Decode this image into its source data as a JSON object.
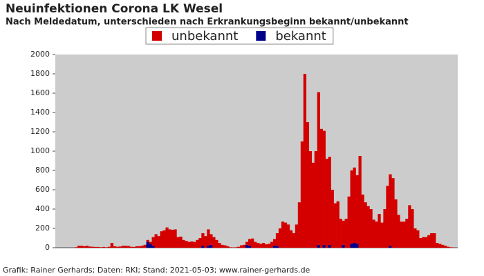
{
  "chart_data": {
    "type": "stacked-bar",
    "title": "Neuinfektionen Corona LK Wesel",
    "subtitle": "Nach Meldedatum, unterschieden nach Erkrankungsbeginn bekannt/unbekannt",
    "footer": "Grafik: Rainer Gerhards; Daten: RKI; Stand: 2021-05-03; www.rainer-gerhards.de",
    "legend_position": "top",
    "ylim": [
      0,
      2000
    ],
    "yticks": [
      0,
      200,
      400,
      600,
      800,
      1000,
      1200,
      1400,
      1600,
      1800,
      2000
    ],
    "categories": [
      null,
      null,
      null,
      null,
      null,
      null,
      null,
      null,
      null,
      null,
      null,
      null,
      null,
      null,
      null,
      null,
      null,
      null,
      null,
      null,
      null,
      null,
      null,
      null,
      null,
      null,
      null,
      null,
      null,
      null,
      null,
      null,
      null,
      null,
      null,
      null,
      null,
      null,
      null,
      null,
      null,
      null,
      null,
      null,
      null,
      null,
      null,
      null,
      null,
      null,
      null,
      null,
      null,
      null,
      null,
      null,
      null,
      null,
      null,
      null,
      null,
      null,
      null,
      null,
      null,
      null,
      null,
      null,
      null,
      null,
      null,
      null,
      null,
      null,
      null,
      null,
      null,
      null,
      null,
      null,
      null,
      null,
      null,
      null,
      null,
      null,
      null,
      null,
      null,
      null,
      null,
      null,
      null,
      null,
      null,
      null,
      null,
      null,
      null,
      null,
      null,
      null,
      null,
      null,
      null,
      null,
      null,
      null,
      null,
      null,
      null,
      null,
      null,
      null,
      null,
      null,
      null,
      null,
      null,
      null,
      null,
      null,
      null,
      null,
      null,
      null,
      null,
      null,
      null,
      null,
      null,
      null,
      null,
      null,
      null,
      null,
      null,
      null,
      null,
      null,
      null,
      null,
      null,
      null,
      null,
      null
    ],
    "series": [
      {
        "name": "bekannt",
        "color": "#00008b",
        "values": [
          0,
          0,
          0,
          0,
          0,
          0,
          0,
          0,
          0,
          0,
          0,
          0,
          0,
          0,
          0,
          0,
          0,
          0,
          0,
          0,
          0,
          0,
          0,
          0,
          0,
          0,
          0,
          0,
          0,
          0,
          0,
          0,
          0,
          60,
          40,
          20,
          0,
          0,
          0,
          0,
          0,
          0,
          0,
          0,
          0,
          0,
          0,
          0,
          0,
          0,
          0,
          0,
          0,
          20,
          0,
          20,
          30,
          0,
          0,
          0,
          0,
          0,
          0,
          0,
          0,
          0,
          0,
          0,
          0,
          30,
          20,
          0,
          0,
          0,
          0,
          0,
          0,
          0,
          0,
          20,
          20,
          0,
          0,
          0,
          0,
          0,
          0,
          0,
          0,
          0,
          0,
          0,
          0,
          0,
          0,
          30,
          0,
          30,
          0,
          30,
          0,
          0,
          0,
          0,
          30,
          0,
          0,
          40,
          50,
          40,
          0,
          0,
          0,
          0,
          0,
          0,
          0,
          0,
          0,
          0,
          0,
          20,
          0,
          0,
          0,
          0,
          0,
          0,
          0,
          0,
          0,
          0,
          0,
          0,
          0,
          0,
          0,
          0,
          0,
          0,
          0,
          0,
          0,
          0,
          0,
          0
        ]
      },
      {
        "name": "unbekannt",
        "color": "#d40000",
        "values": [
          0,
          0,
          0,
          0,
          0,
          0,
          0,
          5,
          20,
          20,
          15,
          20,
          12,
          10,
          8,
          8,
          5,
          8,
          5,
          10,
          50,
          15,
          10,
          12,
          20,
          20,
          18,
          10,
          8,
          15,
          15,
          20,
          30,
          20,
          20,
          90,
          140,
          120,
          170,
          180,
          210,
          190,
          185,
          190,
          110,
          115,
          80,
          70,
          60,
          65,
          60,
          80,
          100,
          130,
          120,
          170,
          110,
          110,
          80,
          50,
          30,
          25,
          15,
          5,
          3,
          5,
          10,
          25,
          30,
          30,
          70,
          95,
          60,
          50,
          40,
          50,
          35,
          40,
          60,
          70,
          130,
          200,
          270,
          260,
          240,
          180,
          150,
          240,
          470,
          1100,
          1800,
          1300,
          1000,
          880,
          1000,
          1580,
          1230,
          1180,
          920,
          910,
          600,
          460,
          480,
          300,
          250,
          300,
          530,
          760,
          780,
          710,
          950,
          550,
          470,
          430,
          400,
          290,
          270,
          350,
          260,
          400,
          640,
          740,
          720,
          500,
          340,
          270,
          270,
          300,
          440,
          400,
          200,
          180,
          100,
          110,
          110,
          130,
          150,
          150,
          50,
          40,
          30,
          20,
          10,
          5,
          3,
          0
        ]
      }
    ]
  }
}
